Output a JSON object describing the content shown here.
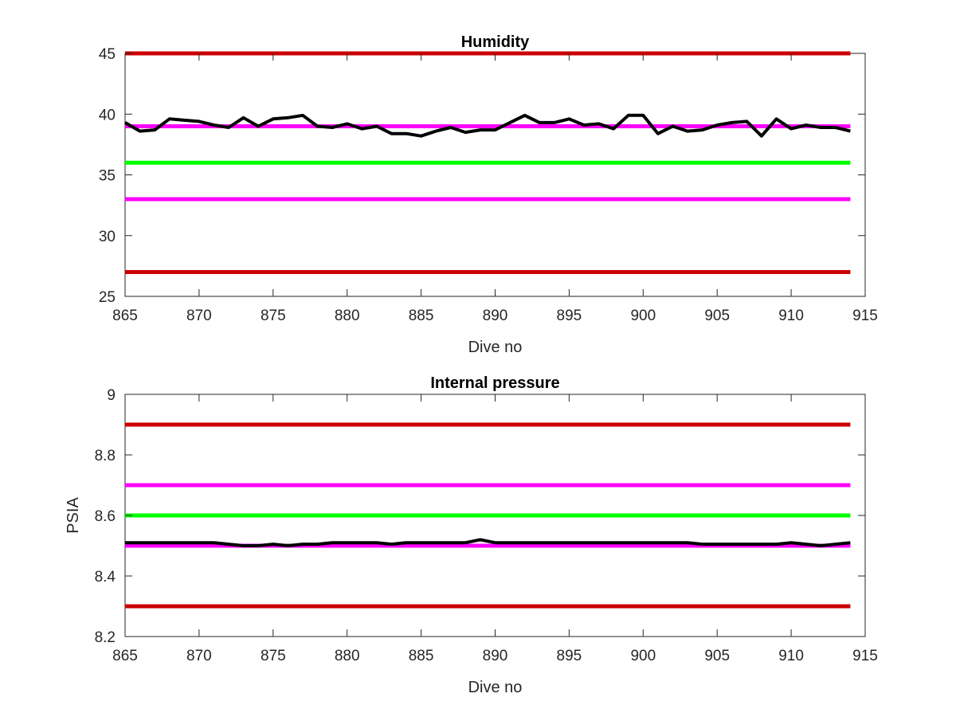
{
  "chart_data": [
    {
      "type": "line",
      "title": "Humidity",
      "xlabel": "Dive no",
      "ylabel": "",
      "xlim": [
        865,
        915
      ],
      "ylim": [
        25,
        45
      ],
      "xticks": [
        "865",
        "870",
        "875",
        "880",
        "885",
        "890",
        "895",
        "900",
        "905",
        "910",
        "915"
      ],
      "yticks": [
        "25",
        "30",
        "35",
        "40",
        "45"
      ],
      "grid": false,
      "series": [
        {
          "color": "#000000",
          "x": [
            865,
            866,
            867,
            868,
            869,
            870,
            871,
            872,
            873,
            874,
            875,
            876,
            877,
            878,
            879,
            880,
            881,
            882,
            883,
            884,
            885,
            886,
            887,
            888,
            889,
            890,
            891,
            892,
            893,
            894,
            895,
            896,
            897,
            898,
            899,
            900,
            901,
            902,
            903,
            904,
            905,
            906,
            907,
            908,
            909,
            910,
            911,
            912,
            913,
            914
          ],
          "y": [
            39.3,
            38.6,
            38.7,
            39.6,
            39.5,
            39.4,
            39.1,
            38.9,
            39.7,
            39.0,
            39.6,
            39.7,
            39.9,
            39.0,
            38.9,
            39.2,
            38.8,
            39.0,
            38.4,
            38.4,
            38.2,
            38.6,
            38.9,
            38.5,
            38.7,
            38.7,
            39.3,
            39.9,
            39.3,
            39.3,
            39.6,
            39.1,
            39.2,
            38.8,
            39.9,
            39.9,
            38.4,
            39.0,
            38.6,
            38.7,
            39.1,
            39.3,
            39.4,
            38.2,
            39.6,
            38.8,
            39.1,
            38.9,
            38.9,
            38.6
          ]
        }
      ],
      "reference_lines": [
        {
          "y": 45,
          "color": "#cc0000"
        },
        {
          "y": 39,
          "color": "#ff00ff"
        },
        {
          "y": 36,
          "color": "#00ff00"
        },
        {
          "y": 33,
          "color": "#ff00ff"
        },
        {
          "y": 27,
          "color": "#cc0000"
        }
      ],
      "ref_x_range": [
        865,
        914
      ]
    },
    {
      "type": "line",
      "title": "Internal pressure",
      "xlabel": "Dive no",
      "ylabel": "PSIA",
      "xlim": [
        865,
        915
      ],
      "ylim": [
        8.2,
        9
      ],
      "xticks": [
        "865",
        "870",
        "875",
        "880",
        "885",
        "890",
        "895",
        "900",
        "905",
        "910",
        "915"
      ],
      "yticks": [
        "8.2",
        "8.4",
        "8.6",
        "8.8",
        "9"
      ],
      "grid": false,
      "series": [
        {
          "color": "#000000",
          "x": [
            865,
            866,
            867,
            868,
            869,
            870,
            871,
            872,
            873,
            874,
            875,
            876,
            877,
            878,
            879,
            880,
            881,
            882,
            883,
            884,
            885,
            886,
            887,
            888,
            889,
            890,
            891,
            892,
            893,
            894,
            895,
            896,
            897,
            898,
            899,
            900,
            901,
            902,
            903,
            904,
            905,
            906,
            907,
            908,
            909,
            910,
            911,
            912,
            913,
            914
          ],
          "y": [
            8.51,
            8.51,
            8.51,
            8.51,
            8.51,
            8.51,
            8.51,
            8.505,
            8.5,
            8.5,
            8.505,
            8.5,
            8.505,
            8.505,
            8.51,
            8.51,
            8.51,
            8.51,
            8.505,
            8.51,
            8.51,
            8.51,
            8.51,
            8.51,
            8.52,
            8.51,
            8.51,
            8.51,
            8.51,
            8.51,
            8.51,
            8.51,
            8.51,
            8.51,
            8.51,
            8.51,
            8.51,
            8.51,
            8.51,
            8.505,
            8.505,
            8.505,
            8.505,
            8.505,
            8.505,
            8.51,
            8.505,
            8.5,
            8.505,
            8.51
          ]
        }
      ],
      "reference_lines": [
        {
          "y": 8.9,
          "color": "#cc0000"
        },
        {
          "y": 8.7,
          "color": "#ff00ff"
        },
        {
          "y": 8.6,
          "color": "#00ff00"
        },
        {
          "y": 8.5,
          "color": "#ff00ff"
        },
        {
          "y": 8.3,
          "color": "#cc0000"
        }
      ],
      "ref_x_range": [
        865,
        914
      ]
    }
  ]
}
